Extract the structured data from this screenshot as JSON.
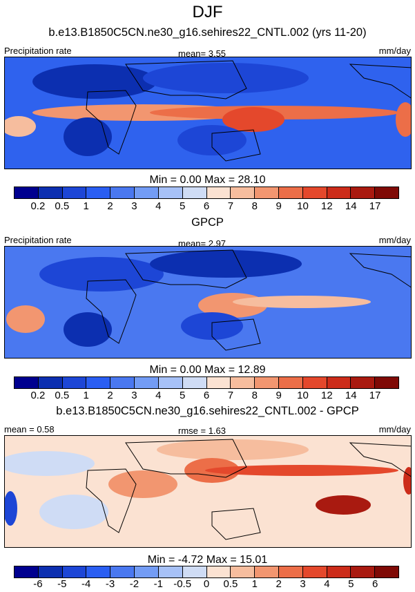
{
  "title": "DJF",
  "colors": {
    "absolute": [
      "#00008f",
      "#0c2fb0",
      "#1d46d6",
      "#2a5ef2",
      "#4a78f0",
      "#739cf5",
      "#a7c1f7",
      "#cfdcf5",
      "#fbe2d2",
      "#f6bd9e",
      "#f29670",
      "#ec6e48",
      "#e4482c",
      "#cc2c1a",
      "#a91a10",
      "#7f0a06"
    ],
    "difference": [
      "#00008f",
      "#0c2fb0",
      "#1d46d6",
      "#2a5ef2",
      "#4a78f0",
      "#739cf5",
      "#a7c1f7",
      "#cfdcf5",
      "#fbe2d2",
      "#f6bd9e",
      "#f29670",
      "#ec6e48",
      "#e4482c",
      "#cc2c1a",
      "#a91a10",
      "#7f0a06"
    ],
    "ocean_blue": "#2f62ee",
    "land_edge": "#000000"
  },
  "panels": [
    {
      "subtitle": "b.e13.B1850C5CN.ne30_g16.sehires22_CNTL.002 (yrs 11-20)",
      "left_label": "Precipitation rate",
      "center_label": "mean=   3.55",
      "right_label": "mm/day",
      "stats": "Min =   0.00 Max =  28.10",
      "tick_labels": [
        "0.2",
        "0.5",
        "1",
        "2",
        "3",
        "4",
        "5",
        "6",
        "7",
        "8",
        "9",
        "10",
        "12",
        "14",
        "17"
      ]
    },
    {
      "subtitle": "GPCP",
      "left_label": "Precipitation rate",
      "center_label": "mean=   2.97",
      "right_label": "mm/day",
      "stats": "Min =   0.00 Max =  12.89",
      "tick_labels": [
        "0.2",
        "0.5",
        "1",
        "2",
        "3",
        "4",
        "5",
        "6",
        "7",
        "8",
        "9",
        "10",
        "12",
        "14",
        "17"
      ]
    },
    {
      "subtitle": "b.e13.B1850C5CN.ne30_g16.sehires22_CNTL.002 - GPCP",
      "left_label": "mean =   0.58",
      "center_label": "rmse =   1.63",
      "right_label": "mm/day",
      "stats": "Min =  -4.72 Max =  15.01",
      "tick_labels": [
        "-6",
        "-5",
        "-4",
        "-3",
        "-2",
        "-1",
        "-0.5",
        "0",
        "0.5",
        "1",
        "2",
        "3",
        "4",
        "5",
        "6"
      ]
    }
  ],
  "chart_data": [
    {
      "type": "heatmap",
      "title": "DJF",
      "subtitle": "b.e13.B1850C5CN.ne30_g16.sehires22_CNTL.002 (yrs 11-20)",
      "variable": "Precipitation rate",
      "units": "mm/day",
      "mean": 3.55,
      "min": 0.0,
      "max": 28.1,
      "contour_levels": [
        0.2,
        0.5,
        1,
        2,
        3,
        4,
        5,
        6,
        7,
        8,
        9,
        10,
        12,
        14,
        17
      ]
    },
    {
      "type": "heatmap",
      "subtitle": "GPCP",
      "variable": "Precipitation rate",
      "units": "mm/day",
      "mean": 2.97,
      "min": 0.0,
      "max": 12.89,
      "contour_levels": [
        0.2,
        0.5,
        1,
        2,
        3,
        4,
        5,
        6,
        7,
        8,
        9,
        10,
        12,
        14,
        17
      ]
    },
    {
      "type": "heatmap",
      "subtitle": "b.e13.B1850C5CN.ne30_g16.sehires22_CNTL.002 - GPCP",
      "units": "mm/day",
      "mean": 0.58,
      "rmse": 1.63,
      "min": -4.72,
      "max": 15.01,
      "contour_levels": [
        -6,
        -5,
        -4,
        -3,
        -2,
        -1,
        -0.5,
        0,
        0.5,
        1,
        2,
        3,
        4,
        5,
        6
      ]
    }
  ]
}
